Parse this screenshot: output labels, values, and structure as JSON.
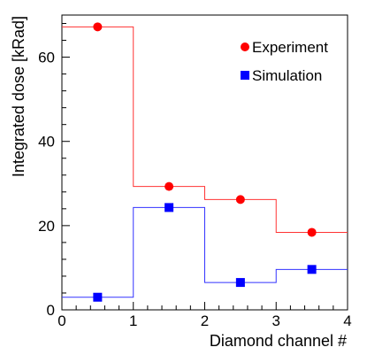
{
  "chart_data": {
    "type": "step",
    "title": "",
    "xlabel": "Diamond channel #",
    "ylabel": "Integrated dose [kRad]",
    "xlim": [
      0,
      4
    ],
    "ylim": [
      0,
      70
    ],
    "x_ticks": [
      0,
      1,
      2,
      3,
      4
    ],
    "y_ticks": [
      0,
      20,
      40,
      60
    ],
    "grid": false,
    "legend_position": "top-right",
    "bins": [
      [
        0,
        1
      ],
      [
        1,
        2
      ],
      [
        2,
        3
      ],
      [
        3,
        4
      ]
    ],
    "series": [
      {
        "name": "Experiment",
        "marker": "circle",
        "color": "#ff0000",
        "line_color": "#ff3333",
        "x": [
          0.5,
          1.5,
          2.5,
          3.5
        ],
        "values": [
          67.2,
          29.3,
          26.2,
          18.4
        ]
      },
      {
        "name": "Simulation",
        "marker": "square",
        "color": "#0000ff",
        "line_color": "#3333ff",
        "x": [
          0.5,
          1.5,
          2.5,
          3.5
        ],
        "values": [
          3.0,
          24.3,
          6.5,
          9.6
        ]
      }
    ]
  }
}
